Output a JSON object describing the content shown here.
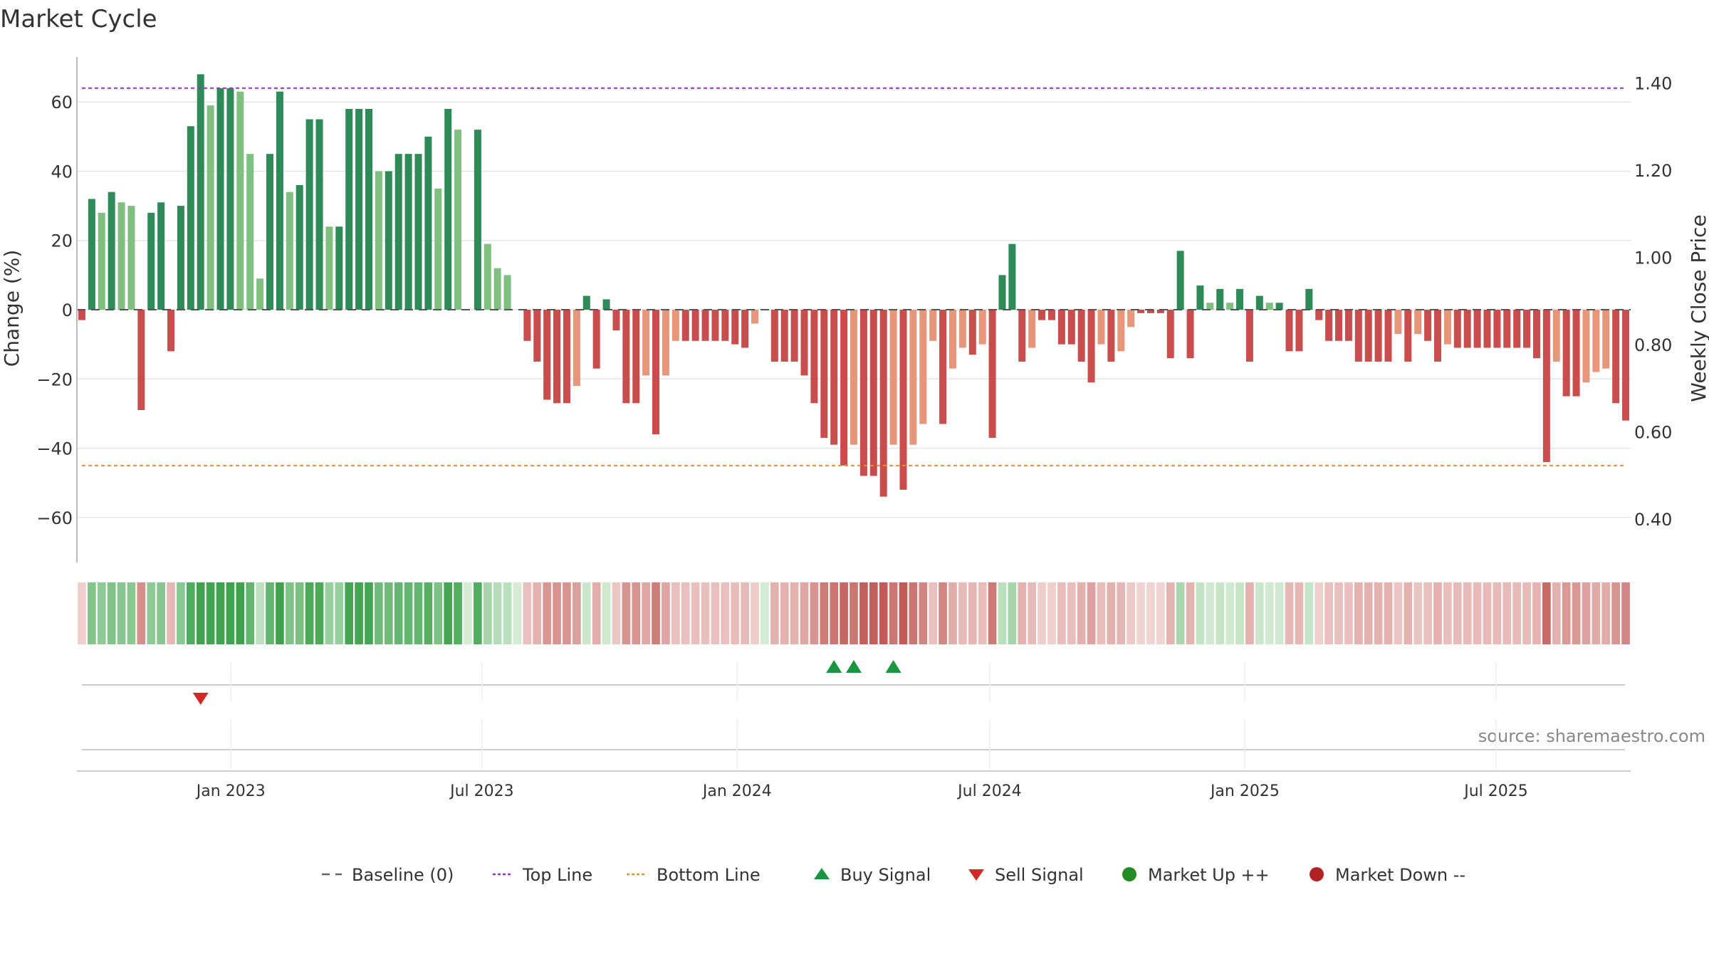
{
  "chart_data": {
    "type": "bar",
    "title": "Market Cycle",
    "ylabel_left": "Change (%)",
    "ylabel_right": "Weekly Close Price",
    "ylim_left": [
      -73,
      73
    ],
    "ylim_right": [
      0.3,
      1.46
    ],
    "yticks_left": [
      "60",
      "40",
      "20",
      "0",
      "−20",
      "−40",
      "−60"
    ],
    "yticks_left_values": [
      60,
      40,
      20,
      0,
      -20,
      -40,
      -60
    ],
    "yticks_right": [
      "1.40",
      "1.20",
      "1.00",
      "0.80",
      "0.60",
      "0.40"
    ],
    "yticks_right_values": [
      1.4,
      1.2,
      1.0,
      0.8,
      0.6,
      0.4
    ],
    "x_start": "2022-09-12",
    "x_end": "2025-10-06",
    "xticks": [
      "Jan 2023",
      "Jul 2023",
      "Jan 2024",
      "Jul 2024",
      "Jan 2025",
      "Jul 2025"
    ],
    "xticks_dates": [
      "2023-01-01",
      "2023-07-01",
      "2024-01-01",
      "2024-07-01",
      "2025-01-01",
      "2025-07-01"
    ],
    "top_line": 64,
    "bottom_line": -45,
    "values": [
      -3,
      32,
      28,
      34,
      31,
      30,
      -29,
      28,
      31,
      -12,
      30,
      53,
      68,
      59,
      64,
      64,
      63,
      45,
      9,
      45,
      63,
      34,
      36,
      55,
      55,
      24,
      24,
      58,
      58,
      58,
      40,
      40,
      45,
      45,
      45,
      50,
      35,
      58,
      52,
      0,
      52,
      19,
      12,
      10,
      0,
      -9,
      -15,
      -26,
      -27,
      -27,
      -22,
      4,
      -17,
      3,
      -6,
      -27,
      -27,
      -19,
      -36,
      -19,
      -9,
      -9,
      -9,
      -9,
      -9,
      -9,
      -10,
      -11,
      -4,
      0,
      -15,
      -15,
      -15,
      -19,
      -27,
      -37,
      -39,
      -45,
      -39,
      -48,
      -48,
      -54,
      -39,
      -52,
      -39,
      -33,
      -9,
      -33,
      -17,
      -11,
      -13,
      -10,
      -37,
      10,
      19,
      -15,
      -11,
      -3,
      -3,
      -10,
      -10,
      -15,
      -21,
      -10,
      -15,
      -12,
      -5,
      -1,
      -1,
      -1,
      -14,
      17,
      -14,
      7,
      2,
      6,
      2,
      6,
      -15,
      4,
      2,
      2,
      -12,
      -12,
      6,
      -3,
      -9,
      -9,
      -9,
      -15,
      -15,
      -15,
      -15,
      -7,
      -15,
      -7,
      -9,
      -15,
      -10,
      -11,
      -11,
      -11,
      -11,
      -11,
      -11,
      -11,
      -11,
      -14,
      -44,
      -15,
      -25,
      -25,
      -21,
      -18,
      -17,
      -27,
      -32
    ],
    "bar_colors": [
      "#c94d4d",
      "#2e8b57",
      "#7fbf7f",
      "#2e8b57",
      "#7fbf7f",
      "#7fbf7f",
      "#c94d4d",
      "#2e8b57",
      "#2e8b57",
      "#c94d4d",
      "#2e8b57",
      "#2e8b57",
      "#2e8b57",
      "#7fbf7f",
      "#2e8b57",
      "#2e8b57",
      "#7fbf7f",
      "#7fbf7f",
      "#7fbf7f",
      "#2e8b57",
      "#2e8b57",
      "#7fbf7f",
      "#2e8b57",
      "#2e8b57",
      "#2e8b57",
      "#7fbf7f",
      "#2e8b57",
      "#2e8b57",
      "#2e8b57",
      "#2e8b57",
      "#7fbf7f",
      "#2e8b57",
      "#2e8b57",
      "#2e8b57",
      "#2e8b57",
      "#2e8b57",
      "#7fbf7f",
      "#2e8b57",
      "#7fbf7f",
      "#7fbf7f",
      "#2e8b57",
      "#7fbf7f",
      "#7fbf7f",
      "#7fbf7f",
      "#7fbf7f",
      "#c94d4d",
      "#c94d4d",
      "#c94d4d",
      "#c94d4d",
      "#c94d4d",
      "#e8967a",
      "#2e8b57",
      "#c94d4d",
      "#2e8b57",
      "#c94d4d",
      "#c94d4d",
      "#c94d4d",
      "#e8967a",
      "#c94d4d",
      "#e8967a",
      "#e8967a",
      "#c94d4d",
      "#c94d4d",
      "#c94d4d",
      "#c94d4d",
      "#c94d4d",
      "#c94d4d",
      "#c94d4d",
      "#e8967a",
      "#c94d4d",
      "#c94d4d",
      "#c94d4d",
      "#c94d4d",
      "#c94d4d",
      "#c94d4d",
      "#c94d4d",
      "#c94d4d",
      "#c94d4d",
      "#e8967a",
      "#c94d4d",
      "#c94d4d",
      "#c94d4d",
      "#e8967a",
      "#c94d4d",
      "#e8967a",
      "#e8967a",
      "#e8967a",
      "#c94d4d",
      "#e8967a",
      "#e8967a",
      "#c94d4d",
      "#e8967a",
      "#c94d4d",
      "#2e8b57",
      "#2e8b57",
      "#c94d4d",
      "#e8967a",
      "#c94d4d",
      "#c94d4d",
      "#c94d4d",
      "#c94d4d",
      "#c94d4d",
      "#c94d4d",
      "#e8967a",
      "#c94d4d",
      "#e8967a",
      "#e8967a",
      "#c94d4d",
      "#c94d4d",
      "#c94d4d",
      "#c94d4d",
      "#2e8b57",
      "#c94d4d",
      "#2e8b57",
      "#7fbf7f",
      "#2e8b57",
      "#7fbf7f",
      "#2e8b57",
      "#c94d4d",
      "#2e8b57",
      "#7fbf7f",
      "#2e8b57",
      "#c94d4d",
      "#c94d4d",
      "#2e8b57",
      "#c94d4d",
      "#c94d4d",
      "#c94d4d",
      "#c94d4d",
      "#c94d4d",
      "#c94d4d",
      "#c94d4d",
      "#c94d4d",
      "#e8967a",
      "#c94d4d",
      "#e8967a",
      "#c94d4d",
      "#c94d4d",
      "#e8967a",
      "#c94d4d",
      "#c94d4d",
      "#c94d4d",
      "#c94d4d",
      "#c94d4d",
      "#c94d4d",
      "#c94d4d",
      "#c94d4d",
      "#c94d4d",
      "#c94d4d",
      "#e8967a",
      "#c94d4d",
      "#c94d4d",
      "#e8967a",
      "#e8967a",
      "#e8967a",
      "#c94d4d",
      "#c94d4d"
    ],
    "buy_signals": [
      76,
      78,
      82
    ],
    "sell_signals": [
      12
    ],
    "market_up_points": [],
    "market_down_points": [],
    "legend_position": "bottom",
    "source_label": "source: sharemaestro.com",
    "legend": [
      {
        "key": "baseline",
        "label": "Baseline (0)",
        "color": "#666666"
      },
      {
        "key": "top",
        "label": "Top Line",
        "color": "#9932cc"
      },
      {
        "key": "bottom",
        "label": "Bottom Line",
        "color": "#e69138"
      },
      {
        "key": "buy",
        "label": "Buy Signal",
        "color": "#1a9641"
      },
      {
        "key": "sell",
        "label": "Sell Signal",
        "color": "#d62728"
      },
      {
        "key": "up",
        "label": "Market Up ++",
        "color": "#228b22"
      },
      {
        "key": "down",
        "label": "Market Down --",
        "color": "#b22222"
      }
    ]
  }
}
